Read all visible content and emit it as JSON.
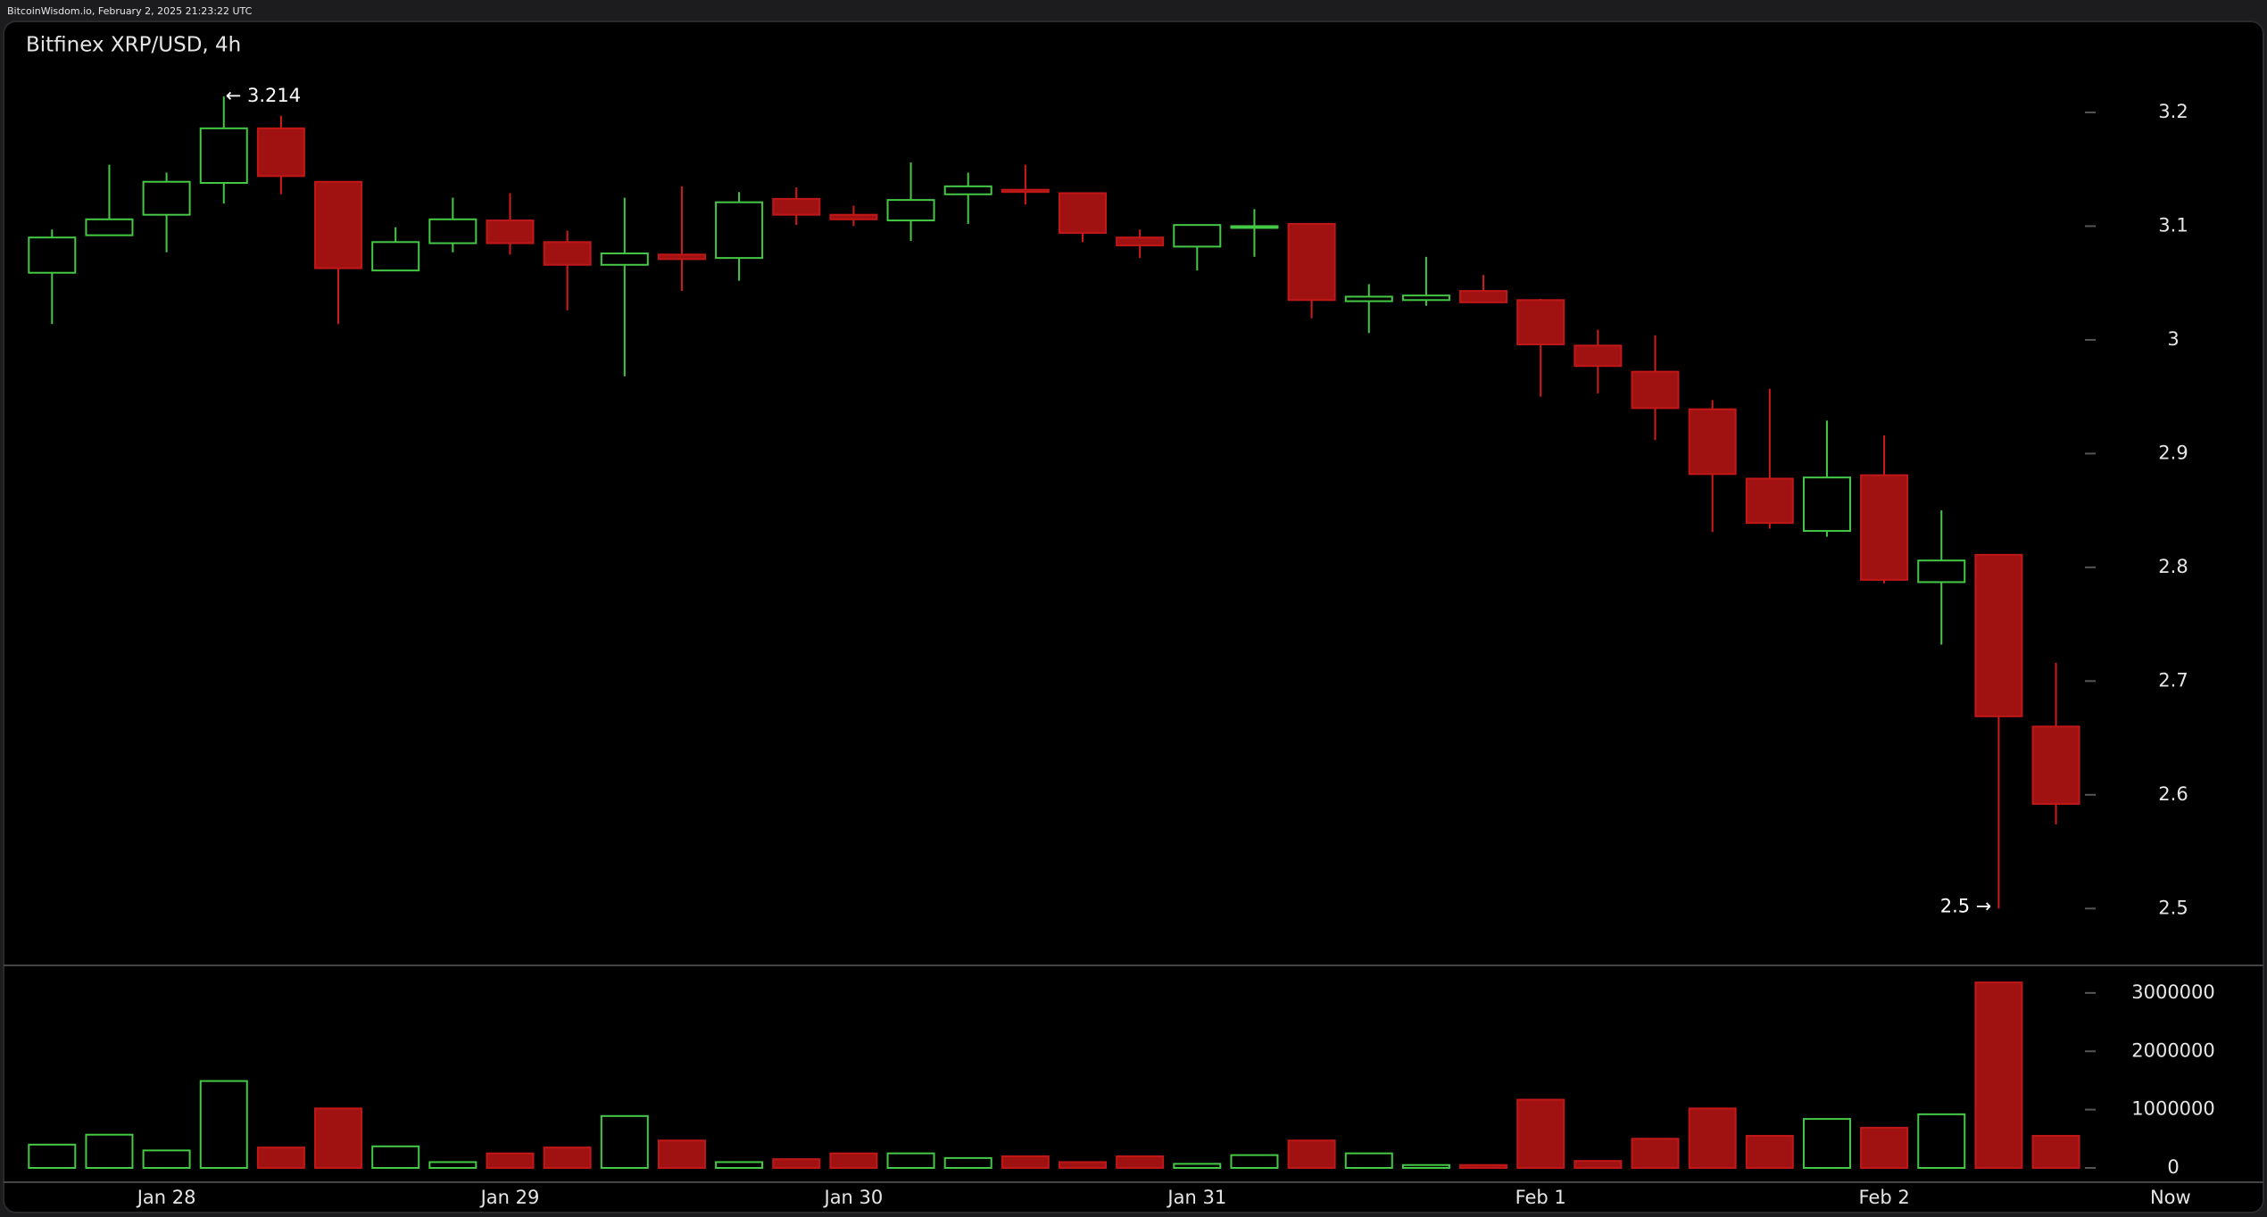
{
  "header": "BitcoinWisdom.io, February 2, 2025 21:23:22 UTC",
  "chart_data": {
    "type": "candlestick",
    "title": "Bitfinex XRP/USD, 4h",
    "categories": [
      null,
      null,
      "Jan 28",
      null,
      null,
      null,
      null,
      null,
      "Jan 29",
      null,
      null,
      null,
      null,
      null,
      "Jan 30",
      null,
      null,
      null,
      null,
      null,
      "Jan 31",
      null,
      null,
      null,
      null,
      null,
      "Feb 1",
      null,
      null,
      null,
      null,
      null,
      "Feb 2",
      null,
      null,
      null
    ],
    "now_label": "Now",
    "open": [
      3.059,
      3.092,
      3.11,
      3.138,
      3.186,
      3.139,
      3.061,
      3.085,
      3.105,
      3.086,
      3.066,
      3.075,
      3.072,
      3.124,
      3.11,
      3.105,
      3.128,
      3.132,
      3.129,
      3.09,
      3.082,
      3.099,
      3.102,
      3.034,
      3.035,
      3.043,
      3.035,
      2.995,
      2.972,
      2.939,
      2.878,
      2.832,
      2.881,
      2.787,
      2.811,
      2.66
    ],
    "high": [
      3.097,
      3.154,
      3.147,
      3.214,
      3.197,
      3.139,
      3.099,
      3.125,
      3.129,
      3.096,
      3.125,
      3.135,
      3.13,
      3.134,
      3.118,
      3.156,
      3.147,
      3.154,
      3.129,
      3.097,
      3.101,
      3.115,
      3.102,
      3.049,
      3.073,
      3.057,
      3.036,
      3.009,
      3.004,
      2.947,
      2.957,
      2.929,
      2.916,
      2.85,
      2.811,
      2.716
    ],
    "low": [
      3.014,
      3.092,
      3.077,
      3.12,
      3.128,
      3.014,
      3.061,
      3.077,
      3.075,
      3.026,
      2.968,
      3.043,
      3.052,
      3.101,
      3.1,
      3.087,
      3.102,
      3.119,
      3.086,
      3.072,
      3.061,
      3.073,
      3.019,
      3.006,
      3.03,
      3.033,
      2.95,
      2.953,
      2.912,
      2.831,
      2.834,
      2.827,
      2.786,
      2.732,
      2.5,
      2.574
    ],
    "close": [
      3.09,
      3.106,
      3.139,
      3.186,
      3.144,
      3.063,
      3.086,
      3.106,
      3.085,
      3.066,
      3.076,
      3.071,
      3.121,
      3.11,
      3.106,
      3.123,
      3.135,
      3.13,
      3.094,
      3.083,
      3.101,
      3.1,
      3.035,
      3.038,
      3.039,
      3.033,
      2.996,
      2.977,
      2.94,
      2.882,
      2.839,
      2.879,
      2.789,
      2.806,
      2.669,
      2.592
    ],
    "volume": [
      400000,
      570000,
      300000,
      1490000,
      350000,
      1020000,
      370000,
      100000,
      250000,
      350000,
      890000,
      470000,
      100000,
      150000,
      250000,
      250000,
      170000,
      200000,
      100000,
      200000,
      70000,
      220000,
      470000,
      250000,
      50000,
      50000,
      1170000,
      120000,
      500000,
      1020000,
      550000,
      840000,
      690000,
      920000,
      3180000,
      550000
    ],
    "up_color": "#45c845",
    "down_color": "#a01212",
    "ylim": [
      2.45,
      3.28
    ],
    "yticks": [
      2.5,
      2.6,
      2.7,
      2.8,
      2.9,
      3,
      3.1,
      3.2
    ],
    "volume_ylim": [
      0,
      3350000
    ],
    "volume_ticks": [
      0,
      1000000,
      2000000,
      3000000
    ],
    "annotations": [
      {
        "text": "← 3.214",
        "index": 3,
        "side": "high"
      },
      {
        "text": "2.5 →",
        "index": 34,
        "side": "low"
      }
    ]
  }
}
